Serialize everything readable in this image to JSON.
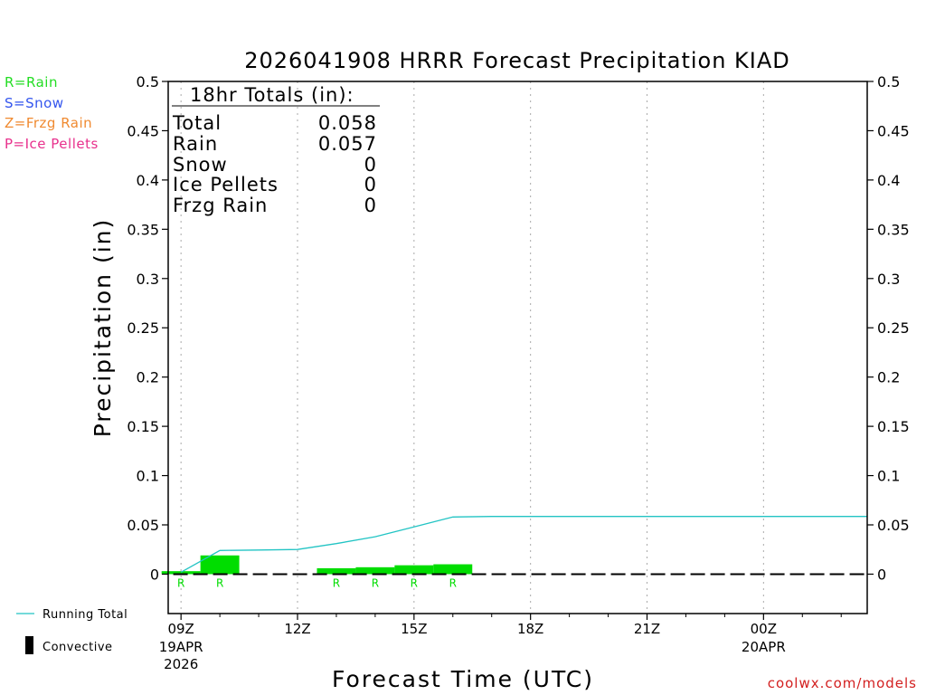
{
  "chart_data": {
    "type": "bar",
    "title": "2026041908 HRRR Forecast Precipitation KIAD",
    "xlabel": "Forecast Time (UTC)",
    "ylabel": "Precipitation (in)",
    "ylim": [
      -0.04,
      0.5
    ],
    "yticks": [
      0,
      0.05,
      0.1,
      0.15,
      0.2,
      0.25,
      0.3,
      0.35,
      0.4,
      0.45,
      0.5
    ],
    "ytick_labels": [
      "0",
      "0.05",
      "0.1",
      "0.15",
      "0.2",
      "0.25",
      "0.3",
      "0.35",
      "0.4",
      "0.45",
      "0.5"
    ],
    "xlim_hours": [
      -0.33,
      17.67
    ],
    "xticks": [
      {
        "hour": 0,
        "label": "09Z",
        "sub1": "19APR",
        "sub2": "2026"
      },
      {
        "hour": 3,
        "label": "12Z",
        "sub1": "",
        "sub2": ""
      },
      {
        "hour": 6,
        "label": "15Z",
        "sub1": "",
        "sub2": ""
      },
      {
        "hour": 9,
        "label": "18Z",
        "sub1": "",
        "sub2": ""
      },
      {
        "hour": 12,
        "label": "21Z",
        "sub1": "",
        "sub2": ""
      },
      {
        "hour": 15,
        "label": "00Z",
        "sub1": "20APR",
        "sub2": ""
      }
    ],
    "bars": [
      {
        "hour": 0,
        "value": 0.003,
        "type": "R"
      },
      {
        "hour": 1,
        "value": 0.019,
        "type": "R"
      },
      {
        "hour": 4,
        "value": 0.006,
        "type": "R"
      },
      {
        "hour": 5,
        "value": 0.007,
        "type": "R"
      },
      {
        "hour": 6,
        "value": 0.009,
        "type": "R"
      },
      {
        "hour": 7,
        "value": 0.01,
        "type": "R"
      }
    ],
    "running_total": {
      "name": "Running Total",
      "hours": [
        0,
        1,
        2,
        3,
        4,
        5,
        6,
        7,
        8,
        9,
        10,
        11,
        12,
        13,
        14,
        15,
        16,
        17,
        17.67
      ],
      "values": [
        0.002,
        0.024,
        0.0245,
        0.025,
        0.031,
        0.038,
        0.048,
        0.058,
        0.0585,
        0.0585,
        0.0585,
        0.0585,
        0.0585,
        0.0585,
        0.0585,
        0.0585,
        0.0585,
        0.0585,
        0.0585
      ]
    },
    "totals": {
      "heading": "18hr Totals (in):",
      "rows": [
        {
          "label": "Total",
          "value": "0.058"
        },
        {
          "label": "Rain",
          "value": "0.057"
        },
        {
          "label": "Snow",
          "value": "0"
        },
        {
          "label": "Ice Pellets",
          "value": "0"
        },
        {
          "label": "Frzg Rain",
          "value": "0"
        }
      ]
    },
    "ptype_legend": [
      {
        "text": "R=Rain",
        "color": "#22dd22"
      },
      {
        "text": "S=Snow",
        "color": "#3355ee"
      },
      {
        "text": "Z=Frzg Rain",
        "color": "#f08a30"
      },
      {
        "text": "P=Ice Pellets",
        "color": "#e8308c"
      }
    ],
    "series_legend": [
      {
        "text": "Running Total",
        "color": "#22c4c4"
      },
      {
        "text": "Convective",
        "color": "#000000"
      }
    ],
    "colors": {
      "rain": "#00dd00",
      "running_total": "#22c4c4",
      "grid": "#aaaaaa",
      "credit": "#d32020"
    },
    "credit": "coolwx.com/models"
  }
}
